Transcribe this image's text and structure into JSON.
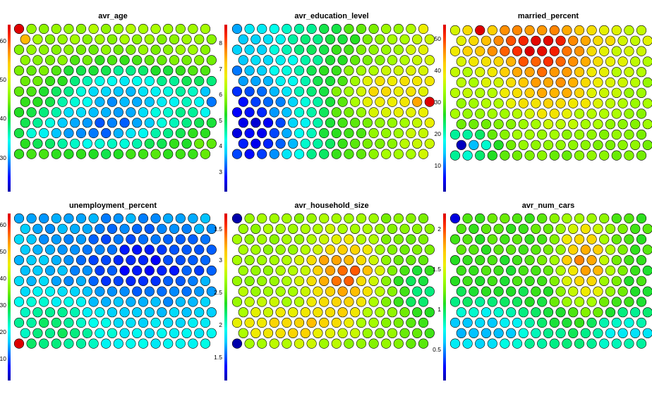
{
  "palette": {
    "stops": [
      "#0000aa",
      "#0000ff",
      "#0066ff",
      "#00ccff",
      "#00ffee",
      "#00ee88",
      "#22dd22",
      "#77ee00",
      "#aaff00",
      "#eeee00",
      "#ffcc00",
      "#ff8800",
      "#ff3300",
      "#dd0000"
    ],
    "stroke": "#000000"
  },
  "chart_data": [
    {
      "type": "heatmap",
      "subtype": "hexagonal-som",
      "title": "avr_age",
      "legend_position": "left",
      "ticks": [
        "30",
        "40",
        "50",
        "60"
      ],
      "range": [
        22,
        65
      ],
      "grid": "13 rows x 16 hexagonal cells",
      "field": "low-values-diagonal-band-lower-middle",
      "hotspots": [
        {
          "row": 0,
          "col": 0,
          "value": 65
        },
        {
          "row": 1,
          "col": 0,
          "value": 56
        }
      ]
    },
    {
      "type": "heatmap",
      "subtype": "hexagonal-som",
      "title": "avr_education_level",
      "legend_position": "right",
      "ticks": [
        "3",
        "4",
        "5",
        "6",
        "7",
        "8"
      ],
      "range": [
        2.2,
        8.6
      ],
      "grid": "13 rows x 16 hexagonal cells",
      "field": "low-left-high-right",
      "hotspots": [
        {
          "row": 7,
          "col": 15,
          "value": 8.6
        },
        {
          "row": 7,
          "col": 14,
          "value": 7.4
        }
      ]
    },
    {
      "type": "heatmap",
      "subtype": "hexagonal-som",
      "title": "married_percent",
      "legend_position": "right",
      "ticks": [
        "10",
        "20",
        "30",
        "40",
        "50"
      ],
      "range": [
        3,
        56
      ],
      "grid": "13 rows x 16 hexagonal cells",
      "field": "high-top-center",
      "hotspots": [
        {
          "row": 0,
          "col": 2,
          "value": 56
        },
        {
          "row": 11,
          "col": 0,
          "value": 4
        }
      ]
    },
    {
      "type": "heatmap",
      "subtype": "hexagonal-som",
      "title": "unemployment_percent",
      "legend_position": "left",
      "ticks": [
        "10",
        "20",
        "30",
        "40",
        "50",
        "60"
      ],
      "range": [
        3,
        64
      ],
      "grid": "13 rows x 16 hexagonal cells",
      "field": "low-top-right",
      "hotspots": [
        {
          "row": 12,
          "col": 0,
          "value": 64
        },
        {
          "row": 12,
          "col": 1,
          "value": 28
        }
      ]
    },
    {
      "type": "heatmap",
      "subtype": "hexagonal-som",
      "title": "avr_household_size",
      "legend_position": "right",
      "ticks": [
        "1.5",
        "2",
        "2.5",
        "3",
        "1.5"
      ],
      "range": [
        1.2,
        3.8
      ],
      "grid": "13 rows x 16 hexagonal cells",
      "field": "high-center-band",
      "hotspots": [
        {
          "row": 0,
          "col": 0,
          "value": 1.2
        },
        {
          "row": 12,
          "col": 0,
          "value": 1.2
        }
      ]
    },
    {
      "type": "heatmap",
      "subtype": "hexagonal-som",
      "title": "avr_num_cars",
      "legend_position": "left",
      "ticks": [
        "0.5",
        "1",
        "1.5",
        "2"
      ],
      "range": [
        0.2,
        2.3
      ],
      "grid": "13 rows x 16 hexagonal cells",
      "field": "high-upper-center-ridge",
      "hotspots": [
        {
          "row": 0,
          "col": 0,
          "value": 0.3
        }
      ]
    }
  ]
}
